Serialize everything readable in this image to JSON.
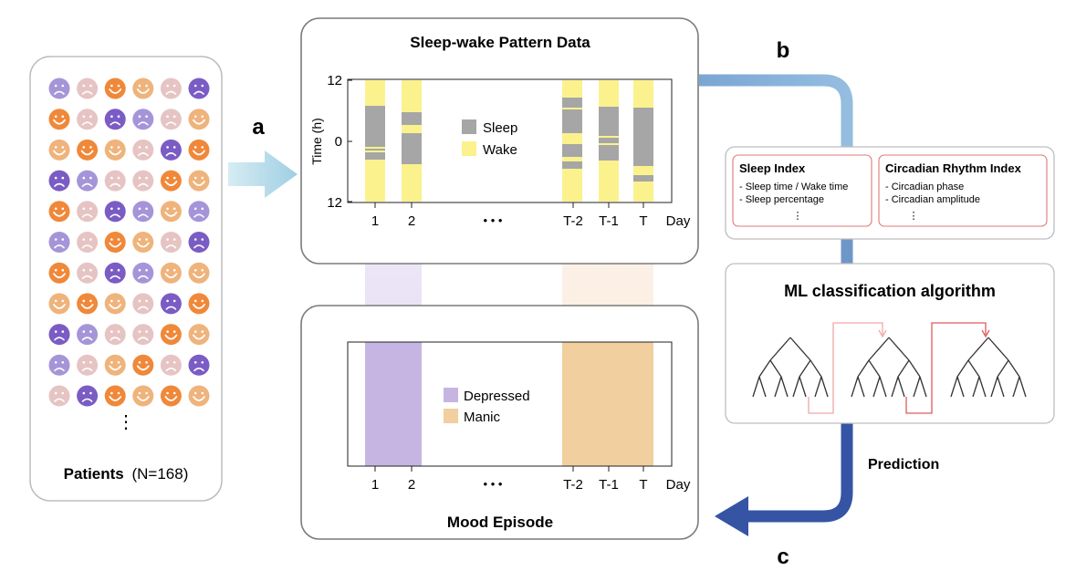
{
  "patients": {
    "label_bold": "Patients",
    "label_rest": "(N=168)",
    "ellipsis": "⋮",
    "grid": [
      [
        "p",
        "l",
        "o",
        "t",
        "l",
        "v"
      ],
      [
        "o",
        "l",
        "v",
        "p",
        "l",
        "t"
      ],
      [
        "t",
        "o",
        "t",
        "l",
        "v",
        "o"
      ],
      [
        "v",
        "p",
        "l",
        "l",
        "o",
        "t"
      ],
      [
        "o",
        "l",
        "v",
        "p",
        "t",
        "p"
      ],
      [
        "p",
        "l",
        "o",
        "t",
        "l",
        "v"
      ],
      [
        "o",
        "l",
        "v",
        "p",
        "t",
        "t"
      ],
      [
        "t",
        "o",
        "t",
        "l",
        "v",
        "o"
      ],
      [
        "v",
        "p",
        "l",
        "l",
        "o",
        "t"
      ],
      [
        "p",
        "l",
        "t",
        "o",
        "l",
        "v"
      ],
      [
        "l",
        "v",
        "o",
        "t",
        "o",
        "t"
      ]
    ],
    "colors": {
      "p": "#a595d8",
      "l": "#e6c4c4",
      "o": "#f0883a",
      "t": "#efb37c",
      "v": "#7a5cc4"
    },
    "moods": {
      "p": "sad",
      "l": "sad",
      "o": "happy",
      "t": "happy",
      "v": "sad"
    }
  },
  "labels": {
    "a": "a",
    "b": "b",
    "c": "c"
  },
  "sleep_panel": {
    "title": "Sleep-wake Pattern Data",
    "ylabel": "Time (h)",
    "yticks": [
      "12",
      "0",
      "12"
    ],
    "legend_sleep": "Sleep",
    "legend_wake": "Wake",
    "colors": {
      "sleep": "#a6a6a6",
      "wake": "#fbf28e"
    }
  },
  "axis": {
    "days": [
      "1",
      "2",
      "T-2",
      "T-1",
      "T"
    ],
    "dots": "• • •",
    "unit": "Day"
  },
  "mood_panel": {
    "title": "Mood Episode",
    "legend_depressed": "Depressed",
    "legend_manic": "Manic",
    "colors": {
      "depressed": "#c6b5e3",
      "manic": "#f2cf9f"
    }
  },
  "index_panel": {
    "sleep_index": {
      "title": "Sleep Index",
      "items": [
        "- Sleep time / Wake time",
        "- Sleep percentage"
      ]
    },
    "circadian_index": {
      "title": "Circadian Rhythm Index",
      "items": [
        "- Circadian phase",
        "- Circadian amplitude"
      ]
    },
    "ellipsis": "⋮"
  },
  "ml_panel": {
    "title": "ML classification algorithm"
  },
  "prediction_label": "Prediction"
}
